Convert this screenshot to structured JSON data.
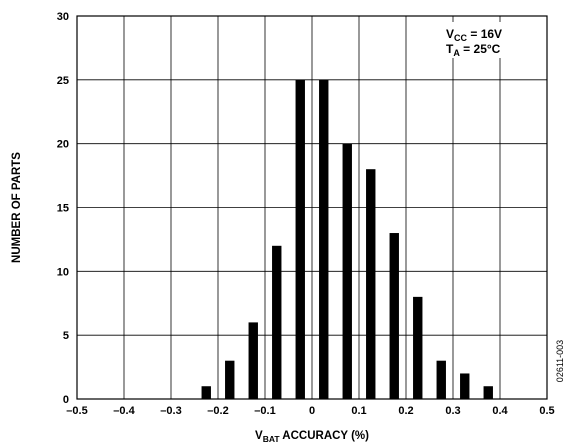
{
  "chart_data": {
    "type": "bar",
    "x": [
      -0.225,
      -0.175,
      -0.125,
      -0.075,
      -0.025,
      0.025,
      0.075,
      0.125,
      0.175,
      0.225,
      0.275,
      0.325,
      0.375
    ],
    "values": [
      1,
      3,
      6,
      12,
      25,
      25,
      20,
      18,
      13,
      8,
      3,
      2,
      1
    ],
    "xlim": [
      -0.5,
      0.5
    ],
    "ylim": [
      0,
      30
    ],
    "x_ticks": [
      "–0.5",
      "–0.4",
      "–0.3",
      "–0.2",
      "–0.1",
      "0",
      "0.1",
      "0.2",
      "0.3",
      "0.4",
      "0.5"
    ],
    "y_ticks": [
      "0",
      "5",
      "10",
      "15",
      "20",
      "25",
      "30"
    ],
    "xlabel": {
      "main": "V",
      "sub": "BAT",
      "rest": " ACCURACY (%)"
    },
    "ylabel": "NUMBER OF PARTS",
    "grid": true,
    "bar_color": "#000000",
    "annotations": [
      {
        "main": "V",
        "sub": "CC",
        "rest": " = 16V"
      },
      {
        "main": "T",
        "sub": "A",
        "rest": " = 25°C"
      }
    ],
    "figure_code": "02611-003"
  }
}
